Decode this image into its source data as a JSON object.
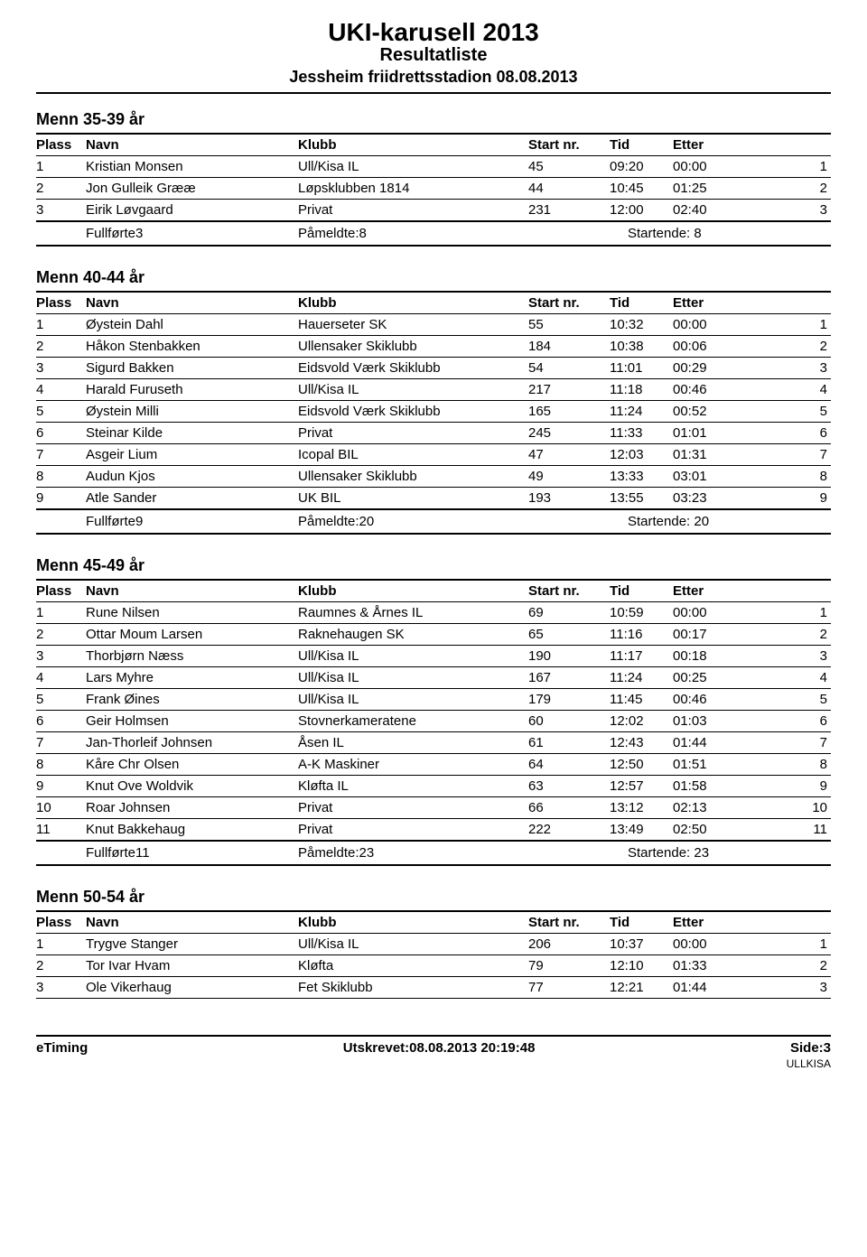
{
  "header": {
    "title": "UKI-karusell 2013",
    "subtitle": "Resultatliste",
    "venue": "Jessheim friidrettsstadion 08.08.2013"
  },
  "columns": {
    "plass": "Plass",
    "navn": "Navn",
    "klubb": "Klubb",
    "startnr": "Start nr.",
    "tid": "Tid",
    "etter": "Etter"
  },
  "sections": [
    {
      "title": "Menn 35-39 år",
      "rows": [
        {
          "plass": "1",
          "navn": "Kristian Monsen",
          "klubb": "Ull/Kisa IL",
          "startnr": "45",
          "tid": "09:20",
          "etter": "00:00",
          "r": "1"
        },
        {
          "plass": "2",
          "navn": "Jon Gulleik Grææ",
          "klubb": "Løpsklubben 1814",
          "startnr": "44",
          "tid": "10:45",
          "etter": "01:25",
          "r": "2"
        },
        {
          "plass": "3",
          "navn": "Eirik Løvgaard",
          "klubb": "Privat",
          "startnr": "231",
          "tid": "12:00",
          "etter": "02:40",
          "r": "3"
        }
      ],
      "summary": {
        "fullforte": "Fullførte3",
        "pameldte": "Påmeldte:8",
        "startende": "Startende: 8"
      }
    },
    {
      "title": "Menn 40-44 år",
      "rows": [
        {
          "plass": "1",
          "navn": "Øystein Dahl",
          "klubb": "Hauerseter SK",
          "startnr": "55",
          "tid": "10:32",
          "etter": "00:00",
          "r": "1"
        },
        {
          "plass": "2",
          "navn": "Håkon Stenbakken",
          "klubb": "Ullensaker Skiklubb",
          "startnr": "184",
          "tid": "10:38",
          "etter": "00:06",
          "r": "2"
        },
        {
          "plass": "3",
          "navn": "Sigurd Bakken",
          "klubb": "Eidsvold Værk Skiklubb",
          "startnr": "54",
          "tid": "11:01",
          "etter": "00:29",
          "r": "3"
        },
        {
          "plass": "4",
          "navn": "Harald Furuseth",
          "klubb": "Ull/Kisa IL",
          "startnr": "217",
          "tid": "11:18",
          "etter": "00:46",
          "r": "4"
        },
        {
          "plass": "5",
          "navn": "Øystein Milli",
          "klubb": "Eidsvold Værk Skiklubb",
          "startnr": "165",
          "tid": "11:24",
          "etter": "00:52",
          "r": "5"
        },
        {
          "plass": "6",
          "navn": "Steinar Kilde",
          "klubb": "Privat",
          "startnr": "245",
          "tid": "11:33",
          "etter": "01:01",
          "r": "6"
        },
        {
          "plass": "7",
          "navn": "Asgeir Lium",
          "klubb": "Icopal BIL",
          "startnr": "47",
          "tid": "12:03",
          "etter": "01:31",
          "r": "7"
        },
        {
          "plass": "8",
          "navn": "Audun Kjos",
          "klubb": "Ullensaker Skiklubb",
          "startnr": "49",
          "tid": "13:33",
          "etter": "03:01",
          "r": "8"
        },
        {
          "plass": "9",
          "navn": "Atle Sander",
          "klubb": "UK BIL",
          "startnr": "193",
          "tid": "13:55",
          "etter": "03:23",
          "r": "9"
        }
      ],
      "summary": {
        "fullforte": "Fullførte9",
        "pameldte": "Påmeldte:20",
        "startende": "Startende: 20"
      }
    },
    {
      "title": "Menn 45-49 år",
      "rows": [
        {
          "plass": "1",
          "navn": "Rune Nilsen",
          "klubb": "Raumnes & Årnes IL",
          "startnr": "69",
          "tid": "10:59",
          "etter": "00:00",
          "r": "1"
        },
        {
          "plass": "2",
          "navn": "Ottar Moum Larsen",
          "klubb": "Raknehaugen SK",
          "startnr": "65",
          "tid": "11:16",
          "etter": "00:17",
          "r": "2"
        },
        {
          "plass": "3",
          "navn": "Thorbjørn Næss",
          "klubb": "Ull/Kisa IL",
          "startnr": "190",
          "tid": "11:17",
          "etter": "00:18",
          "r": "3"
        },
        {
          "plass": "4",
          "navn": "Lars Myhre",
          "klubb": "Ull/Kisa IL",
          "startnr": "167",
          "tid": "11:24",
          "etter": "00:25",
          "r": "4"
        },
        {
          "plass": "5",
          "navn": "Frank Øines",
          "klubb": "Ull/Kisa IL",
          "startnr": "179",
          "tid": "11:45",
          "etter": "00:46",
          "r": "5"
        },
        {
          "plass": "6",
          "navn": "Geir Holmsen",
          "klubb": "Stovnerkameratene",
          "startnr": "60",
          "tid": "12:02",
          "etter": "01:03",
          "r": "6"
        },
        {
          "plass": "7",
          "navn": "Jan-Thorleif Johnsen",
          "klubb": "Åsen IL",
          "startnr": "61",
          "tid": "12:43",
          "etter": "01:44",
          "r": "7"
        },
        {
          "plass": "8",
          "navn": "Kåre Chr Olsen",
          "klubb": "A-K Maskiner",
          "startnr": "64",
          "tid": "12:50",
          "etter": "01:51",
          "r": "8"
        },
        {
          "plass": "9",
          "navn": "Knut Ove Woldvik",
          "klubb": "Kløfta IL",
          "startnr": "63",
          "tid": "12:57",
          "etter": "01:58",
          "r": "9"
        },
        {
          "plass": "10",
          "navn": "Roar Johnsen",
          "klubb": "Privat",
          "startnr": "66",
          "tid": "13:12",
          "etter": "02:13",
          "r": "10"
        },
        {
          "plass": "11",
          "navn": "Knut Bakkehaug",
          "klubb": "Privat",
          "startnr": "222",
          "tid": "13:49",
          "etter": "02:50",
          "r": "11"
        }
      ],
      "summary": {
        "fullforte": "Fullførte11",
        "pameldte": "Påmeldte:23",
        "startende": "Startende: 23"
      }
    },
    {
      "title": "Menn 50-54 år",
      "rows": [
        {
          "plass": "1",
          "navn": "Trygve Stanger",
          "klubb": "Ull/Kisa IL",
          "startnr": "206",
          "tid": "10:37",
          "etter": "00:00",
          "r": "1"
        },
        {
          "plass": "2",
          "navn": "Tor Ivar Hvam",
          "klubb": "Kløfta",
          "startnr": "79",
          "tid": "12:10",
          "etter": "01:33",
          "r": "2"
        },
        {
          "plass": "3",
          "navn": "Ole Vikerhaug",
          "klubb": "Fet Skiklubb",
          "startnr": "77",
          "tid": "12:21",
          "etter": "01:44",
          "r": "3"
        }
      ],
      "summary": null
    }
  ],
  "footer": {
    "left": "eTiming",
    "center": "Utskrevet:08.08.2013 20:19:48",
    "right": "Side:3",
    "sub": "ULLKISA"
  }
}
